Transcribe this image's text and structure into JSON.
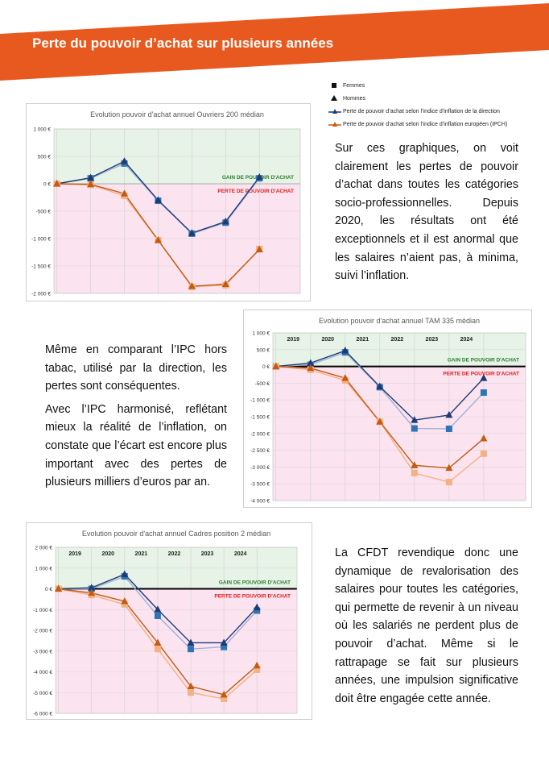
{
  "header": {
    "title": "Perte du pouvoir d’achat sur plusieurs années"
  },
  "legend": [
    "Femmes",
    "Hommes",
    "Perte de pouvoir d’achat selon l’indice d’inflation de la direction",
    "Perte de pouvoir d’achat selon l’indice d’inflation européen (IPCH)"
  ],
  "text_blocks": [
    [
      "Sur ces graphiques, on voit clairement les pertes de pouvoir d’achat dans toutes les catégories socio-professionnelles. Depuis 2020, les résultats ont été exceptionnels et il est anormal que les salaires n’aient pas, à minima, suivi l’inflation."
    ],
    [
      "Même en comparant l’IPC hors tabac, utilisé par la direction, les pertes sont conséquentes.",
      "Avec l’IPC harmonisé, reflétant mieux la réalité de l’inflation, on constate que l’écart est encore plus important avec des pertes de plusieurs milliers d’euros par an."
    ],
    [
      "La CFDT revendique donc une dynamique de revalorisation des salaires pour toutes les catégories, qui permette de revenir à un niveau où les salariés ne perdent plus de pouvoir d’achat. Même si le rattrapage se fait sur plusieurs années, une impulsion significative doit être engagée cette année."
    ]
  ],
  "chart_data": [
    {
      "type": "line",
      "title": "Evolution pouvoir d'achat annuel Ouvriers 200 médian",
      "annotations": [
        "GAIN DE POUVOIR D'ACHAT",
        "PERTE DE POUVOIR D'ACHAT"
      ],
      "categories": [
        null,
        null,
        null,
        null,
        null,
        null,
        null
      ],
      "ylim": [
        -2000,
        1000
      ],
      "yticks": [
        {
          "value": 1000,
          "label": "1 000 €"
        },
        {
          "value": 500,
          "label": "500 €"
        },
        {
          "value": 0,
          "label": "0 €"
        },
        {
          "value": -500,
          "label": "-500 €"
        },
        {
          "value": -1000,
          "label": "-1 000 €"
        },
        {
          "value": -1500,
          "label": "-1 500 €"
        },
        {
          "value": -2000,
          "label": "-2 000 €"
        }
      ],
      "series": [
        {
          "color": "#9fb0d8",
          "marker_color": "#2e75b6",
          "marker": "square",
          "values": [
            0,
            100,
            370,
            -310,
            -910,
            -710,
            100
          ]
        },
        {
          "color": "#1f3b73",
          "marker_color": "#1f3b73",
          "marker": "triangle",
          "values": [
            0,
            110,
            410,
            -300,
            -900,
            -690,
            120
          ]
        },
        {
          "color": "#f4b183",
          "marker_color": "#f4b183",
          "marker": "square",
          "values": [
            0,
            -20,
            -220,
            -1030,
            -1880,
            -1850,
            -1190
          ]
        },
        {
          "color": "#c55a11",
          "marker_color": "#c55a11",
          "marker": "triangle",
          "values": [
            0,
            -10,
            -180,
            -1030,
            -1870,
            -1830,
            -1200
          ]
        }
      ]
    },
    {
      "type": "line",
      "title": "Evolution pouvoir d'achat annuel TAM 335 médian",
      "annotations": [
        "GAIN DE POUVOIR D'ACHAT",
        "PERTE DE POUVOIR D'ACHAT"
      ],
      "year_labels": [
        "2019",
        "2020",
        "2021",
        "2022",
        "2023",
        "2024"
      ],
      "categories": [
        null,
        null,
        null,
        null,
        null,
        null,
        null
      ],
      "ylim": [
        -4000,
        1000
      ],
      "yticks": [
        {
          "value": 1000,
          "label": "1 000 €"
        },
        {
          "value": 500,
          "label": "500 €"
        },
        {
          "value": 0,
          "label": "0 €"
        },
        {
          "value": -500,
          "label": "-500 €"
        },
        {
          "value": -1000,
          "label": "-1 000 €"
        },
        {
          "value": -1500,
          "label": "-1 500 €"
        },
        {
          "value": -2000,
          "label": "-2 000 €"
        },
        {
          "value": -2500,
          "label": "-2 500 €"
        },
        {
          "value": -3000,
          "label": "-3 000 €"
        },
        {
          "value": -3500,
          "label": "-3 500 €"
        },
        {
          "value": -4000,
          "label": "-4 000 €"
        }
      ],
      "series": [
        {
          "color": "#9fb0d8",
          "marker_color": "#2e75b6",
          "marker": "square",
          "values": [
            0,
            50,
            420,
            -620,
            -1850,
            -1860,
            -780
          ]
        },
        {
          "color": "#1f3b73",
          "marker_color": "#1f3b73",
          "marker": "triangle",
          "values": [
            0,
            100,
            470,
            -600,
            -1600,
            -1450,
            -350
          ]
        },
        {
          "color": "#f4b183",
          "marker_color": "#f4b183",
          "marker": "square",
          "values": [
            0,
            -100,
            -420,
            -1650,
            -3180,
            -3450,
            -2600
          ]
        },
        {
          "color": "#c55a11",
          "marker_color": "#c55a11",
          "marker": "triangle",
          "values": [
            0,
            -50,
            -350,
            -1650,
            -2950,
            -3030,
            -2150
          ]
        }
      ]
    },
    {
      "type": "line",
      "title": "Evolution pouvoir d'achat annuel Cadres position 2 médian",
      "annotations": [
        "GAIN DE POUVOIR D'ACHAT",
        "PERTE DE POUVOIR D'ACHAT"
      ],
      "year_labels": [
        "2019",
        "2020",
        "2021",
        "2022",
        "2023",
        "2024"
      ],
      "categories": [
        null,
        null,
        null,
        null,
        null,
        null,
        null
      ],
      "ylim": [
        -6000,
        2000
      ],
      "yticks": [
        {
          "value": 2000,
          "label": "2 000 €"
        },
        {
          "value": 1000,
          "label": "1 000 €"
        },
        {
          "value": 0,
          "label": "0 €"
        },
        {
          "value": -1000,
          "label": "-1 000 €"
        },
        {
          "value": -2000,
          "label": "-2 000 €"
        },
        {
          "value": -3000,
          "label": "-3 000 €"
        },
        {
          "value": -4000,
          "label": "-4 000 €"
        },
        {
          "value": -5000,
          "label": "-5 000 €"
        },
        {
          "value": -6000,
          "label": "-6 000 €"
        }
      ],
      "series": [
        {
          "color": "#9fb0d8",
          "marker_color": "#2e75b6",
          "marker": "square",
          "values": [
            0,
            0,
            600,
            -1300,
            -2900,
            -2800,
            -1050
          ]
        },
        {
          "color": "#1f3b73",
          "marker_color": "#1f3b73",
          "marker": "triangle",
          "values": [
            0,
            50,
            700,
            -1000,
            -2600,
            -2600,
            -900
          ]
        },
        {
          "color": "#f4b183",
          "marker_color": "#f4b183",
          "marker": "square",
          "values": [
            0,
            -300,
            -750,
            -2900,
            -5000,
            -5300,
            -3900
          ]
        },
        {
          "color": "#c55a11",
          "marker_color": "#c55a11",
          "marker": "triangle",
          "values": [
            0,
            -200,
            -600,
            -2600,
            -4700,
            -5100,
            -3700
          ]
        }
      ]
    }
  ]
}
